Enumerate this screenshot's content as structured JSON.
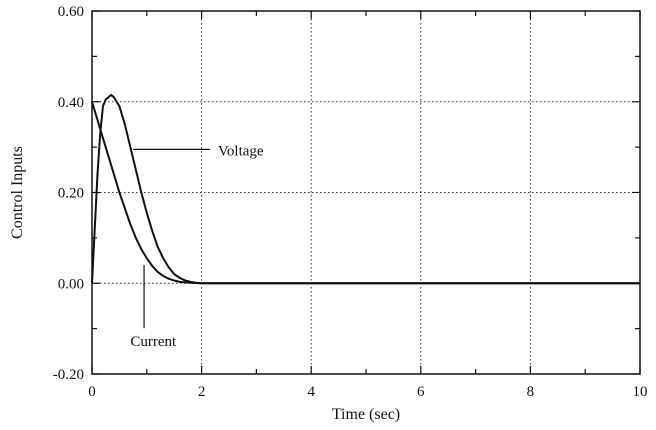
{
  "chart_data": {
    "type": "line",
    "title": "",
    "xlabel": "Time (sec)",
    "ylabel": "Control Inputs",
    "xlim": [
      0,
      10
    ],
    "ylim": [
      -0.2,
      0.6
    ],
    "xticks": [
      0,
      2,
      4,
      6,
      8,
      10
    ],
    "xtick_labels": [
      "0",
      "2",
      "4",
      "6",
      "8",
      "10"
    ],
    "yticks": [
      -0.2,
      0.0,
      0.2,
      0.4,
      0.6
    ],
    "ytick_labels": [
      "-0.20",
      "0.00",
      "0.20",
      "0.40",
      "0.60"
    ],
    "grid": "dotted",
    "legend": "none",
    "series": [
      {
        "name": "Voltage",
        "x": [
          0,
          0.05,
          0.1,
          0.15,
          0.2,
          0.25,
          0.3,
          0.35,
          0.4,
          0.5,
          0.6,
          0.7,
          0.8,
          0.9,
          1.0,
          1.1,
          1.2,
          1.3,
          1.4,
          1.5,
          1.6,
          1.7,
          1.8,
          1.9,
          2.0,
          2.2,
          2.5,
          3,
          4,
          6,
          8,
          10
        ],
        "y": [
          0.0,
          0.12,
          0.24,
          0.33,
          0.39,
          0.405,
          0.41,
          0.415,
          0.41,
          0.39,
          0.35,
          0.3,
          0.25,
          0.2,
          0.155,
          0.115,
          0.08,
          0.055,
          0.035,
          0.02,
          0.012,
          0.006,
          0.003,
          0.001,
          0.0,
          0.0,
          0.0,
          0.0,
          0.0,
          0.0,
          0.0,
          0.0
        ]
      },
      {
        "name": "Current",
        "x": [
          0,
          0.1,
          0.2,
          0.3,
          0.4,
          0.5,
          0.6,
          0.7,
          0.8,
          0.9,
          1.0,
          1.1,
          1.2,
          1.3,
          1.4,
          1.5,
          1.6,
          1.7,
          1.8,
          2.0,
          2.5,
          3,
          4,
          6,
          8,
          10
        ],
        "y": [
          0.4,
          0.36,
          0.32,
          0.28,
          0.24,
          0.2,
          0.165,
          0.13,
          0.1,
          0.075,
          0.055,
          0.038,
          0.025,
          0.016,
          0.01,
          0.006,
          0.003,
          0.002,
          0.001,
          0.0,
          0.0,
          0.0,
          0.0,
          0.0,
          0.0,
          0.0
        ]
      }
    ],
    "annotations": [
      {
        "text": "Voltage",
        "target_series": "Voltage",
        "at_x": 0.75,
        "at_y": 0.295,
        "label_x": 2.3,
        "label_y": 0.28
      },
      {
        "text": "Current",
        "target_series": "Current",
        "at_x": 0.95,
        "at_y": 0.04,
        "label_x": 0.7,
        "label_y": -0.13
      }
    ]
  },
  "style": {
    "line_color": "#111111",
    "grid_color": "#333333",
    "background": "#ffffff"
  }
}
